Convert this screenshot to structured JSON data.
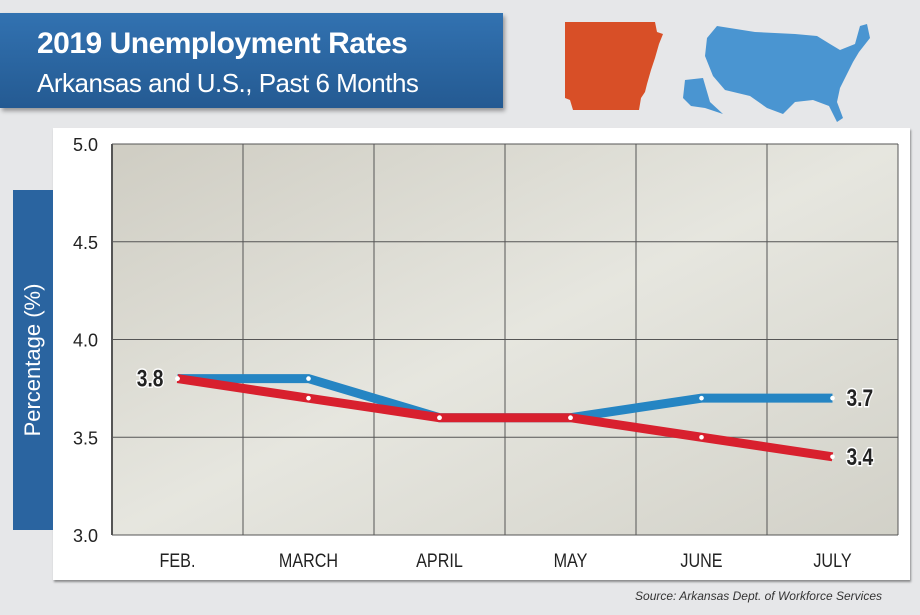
{
  "header": {
    "title": "2019 Unemployment Rates",
    "subtitle": "Arkansas and U.S., Past 6 Months"
  },
  "maps": {
    "state_color": "#d84f27",
    "us_color": "#4a95d1"
  },
  "source": "Source: Arkansas Dept. of Workforce Services",
  "chart_data": {
    "type": "line",
    "title": "2019 Unemployment Rates",
    "subtitle": "Arkansas and U.S., Past 6 Months",
    "xlabel": "",
    "ylabel": "Percentage (%)",
    "categories": [
      "FEB.",
      "MARCH",
      "APRIL",
      "MAY",
      "JUNE",
      "JULY"
    ],
    "yticks": [
      "5.0",
      "4.5",
      "4.0",
      "3.5",
      "3.0"
    ],
    "ylim": [
      3.0,
      5.0
    ],
    "grid": true,
    "series": [
      {
        "color": "#2585c3",
        "values": [
          3.8,
          3.8,
          3.6,
          3.6,
          3.7,
          3.7
        ]
      },
      {
        "color": "#d8202e",
        "values": [
          3.8,
          3.7,
          3.6,
          3.6,
          3.5,
          3.4
        ]
      }
    ],
    "annotations": [
      {
        "text": "3.8"
      },
      {
        "text": "3.7"
      },
      {
        "text": "3.4"
      }
    ]
  }
}
